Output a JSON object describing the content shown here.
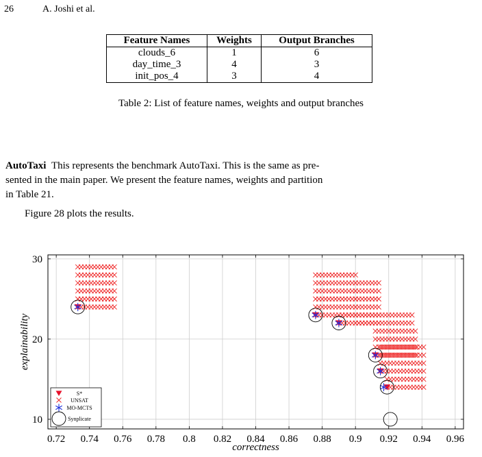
{
  "header": {
    "page_number": "26",
    "authors": "A. Joshi et al."
  },
  "table": {
    "headers": [
      "Feature Names",
      "Weights",
      "Output Branches"
    ],
    "rows": [
      [
        "clouds_6",
        "1",
        "6"
      ],
      [
        "day_time_3",
        "4",
        "3"
      ],
      [
        "init_pos_4",
        "3",
        "4"
      ]
    ],
    "caption": "Table 2: List of feature names, weights and output branches"
  },
  "section": {
    "title": "AutoTaxi",
    "body_line1": "This represents the benchmark AutoTaxi. This is the same as pre-",
    "body_line2": "sented in the main paper. We present the feature names, weights and partition",
    "body_line3": "in Table 21.",
    "figure_ref": "Figure 28 plots the results."
  },
  "chart_data": {
    "type": "scatter",
    "xlabel": "correctness",
    "ylabel": "explainability",
    "xlim": [
      0.715,
      0.965
    ],
    "ylim": [
      8.8,
      30.5
    ],
    "x_ticks": [
      0.72,
      0.74,
      0.76,
      0.78,
      0.8,
      0.82,
      0.84,
      0.86,
      0.88,
      0.9,
      0.92,
      0.94,
      0.96
    ],
    "x_tick_labels": [
      "0.72",
      "0.74",
      "0.76",
      "0.78",
      "0.8",
      "0.82",
      "0.84",
      "0.86",
      "0.88",
      "0.9",
      "0.92",
      "0.94",
      "0.96"
    ],
    "y_ticks": [
      10,
      20,
      30
    ],
    "y_tick_labels": [
      "10",
      "20",
      "30"
    ],
    "grid": true,
    "legend_position": "bottom-left",
    "colors": {
      "s_star": "#e8102a",
      "unsat": "#ee2222",
      "mo_mcts": "#2233dd",
      "synplicate": "#000000"
    },
    "series": [
      {
        "name": "S*",
        "marker": "triangle-down",
        "points": [
          [
            0.733,
            24
          ],
          [
            0.876,
            23
          ],
          [
            0.89,
            22
          ],
          [
            0.912,
            18
          ],
          [
            0.915,
            16
          ],
          [
            0.919,
            14
          ]
        ]
      },
      {
        "name": "UNSAT",
        "marker": "x",
        "grid_blocks": [
          {
            "x_from": 0.733,
            "x_to": 0.755,
            "y_from": 24,
            "y_to": 29
          },
          {
            "x_from": 0.876,
            "x_to": 0.9,
            "y_from": 23,
            "y_to": 28
          },
          {
            "x_from": 0.9,
            "x_to": 0.915,
            "y_from": 22,
            "y_to": 27
          },
          {
            "x_from": 0.89,
            "x_to": 0.934,
            "y_from": 22,
            "y_to": 23
          },
          {
            "x_from": 0.912,
            "x_to": 0.937,
            "y_from": 18,
            "y_to": 21
          },
          {
            "x_from": 0.915,
            "x_to": 0.941,
            "y_from": 16,
            "y_to": 19
          },
          {
            "x_from": 0.919,
            "x_to": 0.941,
            "y_from": 14,
            "y_to": 15
          }
        ]
      },
      {
        "name": "MO-MCTS",
        "marker": "star",
        "points": [
          [
            0.733,
            24
          ],
          [
            0.876,
            23
          ],
          [
            0.89,
            22
          ],
          [
            0.912,
            18
          ],
          [
            0.915,
            16
          ],
          [
            0.917,
            14
          ]
        ]
      },
      {
        "name": "Synplicate",
        "marker": "circle",
        "points": [
          [
            0.733,
            24
          ],
          [
            0.876,
            23
          ],
          [
            0.89,
            22
          ],
          [
            0.912,
            18
          ],
          [
            0.915,
            16
          ],
          [
            0.919,
            14
          ],
          [
            0.921,
            10
          ]
        ]
      }
    ]
  }
}
